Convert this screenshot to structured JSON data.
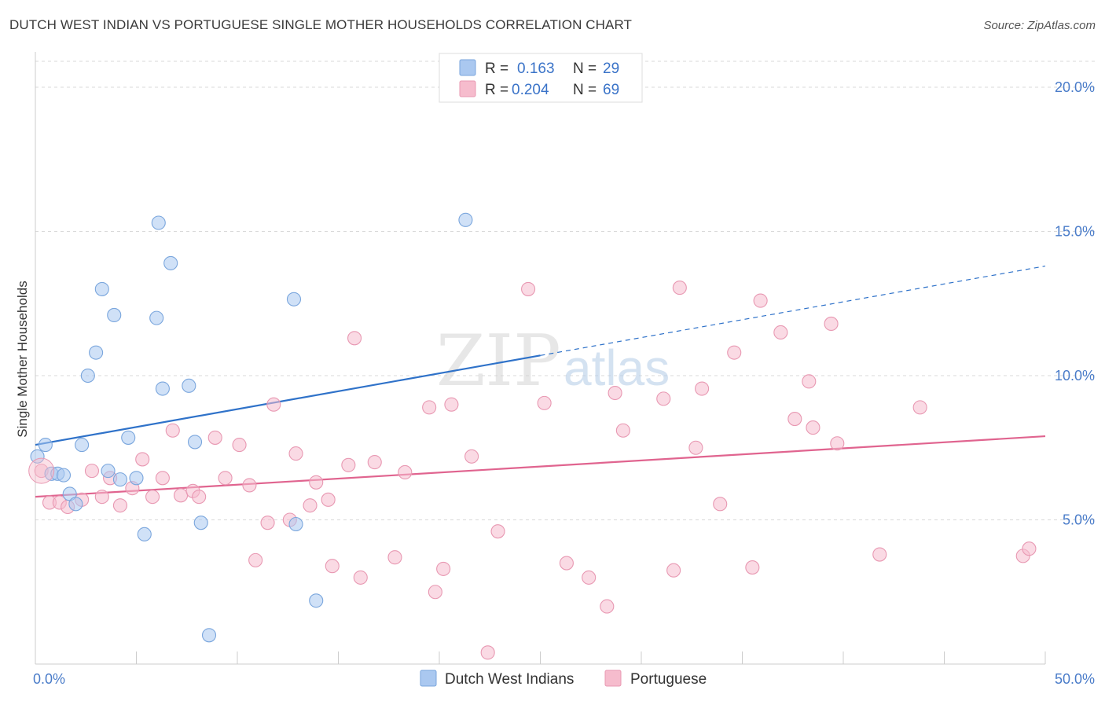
{
  "title": "DUTCH WEST INDIAN VS PORTUGUESE SINGLE MOTHER HOUSEHOLDS CORRELATION CHART",
  "source": "Source: ZipAtlas.com",
  "watermark": {
    "zip": "ZIP",
    "atlas": "atlas"
  },
  "colors": {
    "blue_fill": "#aac8f0",
    "blue_stroke": "#7aa6dd",
    "blue_line": "#2f72c9",
    "pink_fill": "#f6bccd",
    "pink_stroke": "#e898b2",
    "pink_line": "#e0648f",
    "tick_text": "#4a7cc9",
    "grid": "#d9d9d9"
  },
  "legend": {
    "rows": [
      {
        "r_label": "R =",
        "r_value": "0.163",
        "n_label": "N =",
        "n_value": "29"
      },
      {
        "r_label": "R =",
        "r_value": "0.204",
        "n_label": "N =",
        "n_value": "69"
      }
    ]
  },
  "chart_data": {
    "type": "scatter",
    "title": "DUTCH WEST INDIAN VS PORTUGUESE SINGLE MOTHER HOUSEHOLDS CORRELATION CHART",
    "xlabel": "",
    "ylabel": "Single Mother Households",
    "xlim": [
      0,
      50
    ],
    "ylim": [
      0,
      20.9
    ],
    "x_tick_labels": [
      {
        "value": 0,
        "label": "0.0%"
      },
      {
        "value": 50,
        "label": "50.0%"
      }
    ],
    "x_minor_ticks": [
      5,
      10,
      15,
      20,
      25,
      30,
      35,
      40,
      45,
      50
    ],
    "y_ticks": [
      {
        "value": 5,
        "label": "5.0%"
      },
      {
        "value": 10,
        "label": "10.0%"
      },
      {
        "value": 15,
        "label": "15.0%"
      },
      {
        "value": 20,
        "label": "20.0%"
      }
    ],
    "grid": true,
    "series": [
      {
        "name": "Dutch West Indians",
        "color": "blue",
        "R": 0.163,
        "N": 29,
        "trend": {
          "x0": 0,
          "y0": 7.6,
          "x1": 25,
          "y1": 10.7,
          "dash_x1": 50,
          "dash_y1": 13.8
        },
        "points": [
          [
            0.1,
            7.2
          ],
          [
            0.5,
            7.6
          ],
          [
            0.8,
            6.6
          ],
          [
            1.1,
            6.6
          ],
          [
            1.4,
            6.55
          ],
          [
            1.7,
            5.9
          ],
          [
            2.0,
            5.55
          ],
          [
            2.3,
            7.6
          ],
          [
            2.6,
            10.0
          ],
          [
            3.0,
            10.8
          ],
          [
            3.3,
            13.0
          ],
          [
            3.6,
            6.7
          ],
          [
            3.9,
            12.1
          ],
          [
            4.2,
            6.4
          ],
          [
            4.6,
            7.85
          ],
          [
            5.0,
            6.45
          ],
          [
            5.4,
            4.5
          ],
          [
            6.0,
            12.0
          ],
          [
            6.1,
            15.3
          ],
          [
            6.3,
            9.55
          ],
          [
            6.7,
            13.9
          ],
          [
            7.6,
            9.65
          ],
          [
            7.9,
            7.7
          ],
          [
            8.2,
            4.9
          ],
          [
            8.6,
            1.0
          ],
          [
            12.8,
            12.65
          ],
          [
            12.9,
            4.85
          ],
          [
            13.9,
            2.2
          ],
          [
            21.3,
            15.4
          ]
        ]
      },
      {
        "name": "Portuguese",
        "color": "pink",
        "R": 0.204,
        "N": 69,
        "trend": {
          "x0": 0,
          "y0": 5.8,
          "x1": 50,
          "y1": 7.9
        },
        "points": [
          [
            0.3,
            6.7
          ],
          [
            0.7,
            5.6
          ],
          [
            1.2,
            5.6
          ],
          [
            1.6,
            5.45
          ],
          [
            2.3,
            5.7
          ],
          [
            2.8,
            6.7
          ],
          [
            3.3,
            5.8
          ],
          [
            3.7,
            6.45
          ],
          [
            4.2,
            5.5
          ],
          [
            4.8,
            6.1
          ],
          [
            5.3,
            7.1
          ],
          [
            5.8,
            5.8
          ],
          [
            6.3,
            6.45
          ],
          [
            6.8,
            8.1
          ],
          [
            7.2,
            5.85
          ],
          [
            7.8,
            6.0
          ],
          [
            8.1,
            5.8
          ],
          [
            8.9,
            7.85
          ],
          [
            9.4,
            6.45
          ],
          [
            10.1,
            7.6
          ],
          [
            10.6,
            6.2
          ],
          [
            10.9,
            3.6
          ],
          [
            11.5,
            4.9
          ],
          [
            11.8,
            9.0
          ],
          [
            12.6,
            5.0
          ],
          [
            12.9,
            7.3
          ],
          [
            13.6,
            5.5
          ],
          [
            13.9,
            6.3
          ],
          [
            14.5,
            5.7
          ],
          [
            14.7,
            3.4
          ],
          [
            15.5,
            6.9
          ],
          [
            15.8,
            11.3
          ],
          [
            16.1,
            3.0
          ],
          [
            16.8,
            7.0
          ],
          [
            17.8,
            3.7
          ],
          [
            18.3,
            6.65
          ],
          [
            19.5,
            8.9
          ],
          [
            19.8,
            2.5
          ],
          [
            20.2,
            3.3
          ],
          [
            20.6,
            9.0
          ],
          [
            21.6,
            7.2
          ],
          [
            22.4,
            0.4
          ],
          [
            22.9,
            4.6
          ],
          [
            24.4,
            13.0
          ],
          [
            25.2,
            9.05
          ],
          [
            26.3,
            3.5
          ],
          [
            27.4,
            3.0
          ],
          [
            28.3,
            2.0
          ],
          [
            28.7,
            9.4
          ],
          [
            29.1,
            8.1
          ],
          [
            31.1,
            9.2
          ],
          [
            31.6,
            3.25
          ],
          [
            31.9,
            13.05
          ],
          [
            32.7,
            7.5
          ],
          [
            33.0,
            9.55
          ],
          [
            33.9,
            5.55
          ],
          [
            34.6,
            10.8
          ],
          [
            35.5,
            3.35
          ],
          [
            35.9,
            12.6
          ],
          [
            36.9,
            11.5
          ],
          [
            37.6,
            8.5
          ],
          [
            38.3,
            9.8
          ],
          [
            38.5,
            8.2
          ],
          [
            39.4,
            11.8
          ],
          [
            39.7,
            7.65
          ],
          [
            41.8,
            3.8
          ],
          [
            43.8,
            8.9
          ],
          [
            48.9,
            3.75
          ],
          [
            49.2,
            4.0
          ]
        ]
      }
    ]
  }
}
